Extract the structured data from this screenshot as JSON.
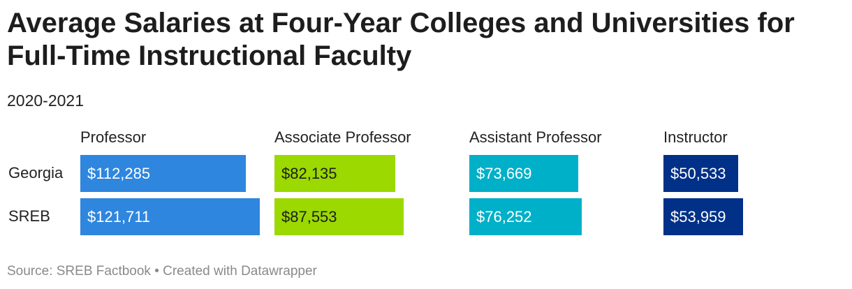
{
  "title": "Average Salaries at Four-Year Colleges and Universities for Full-Time Instructional Faculty",
  "subtitle": "2020-2021",
  "footer": "Source: SREB Factbook • Created with Datawrapper",
  "chart_data": {
    "type": "bar",
    "orientation": "horizontal",
    "layout": "split-bars",
    "rows": [
      "Georgia",
      "SREB"
    ],
    "columns": [
      {
        "name": "Professor",
        "color": "#2e86de",
        "label_color": "#ffffff",
        "values": [
          112285,
          121711
        ],
        "labels": [
          "$112,285",
          "$121,711"
        ]
      },
      {
        "name": "Associate Professor",
        "color": "#9bd900",
        "label_color": "#1d1d1d",
        "values": [
          82135,
          87553
        ],
        "labels": [
          "$82,135",
          "$87,553"
        ]
      },
      {
        "name": "Assistant Professor",
        "color": "#00b0c8",
        "label_color": "#ffffff",
        "values": [
          73669,
          76252
        ],
        "labels": [
          "$73,669",
          "$76,252"
        ]
      },
      {
        "name": "Instructor",
        "color": "#003087",
        "label_color": "#ffffff",
        "values": [
          50533,
          53959
        ],
        "labels": [
          "$50,533",
          "$53,959"
        ]
      }
    ]
  }
}
